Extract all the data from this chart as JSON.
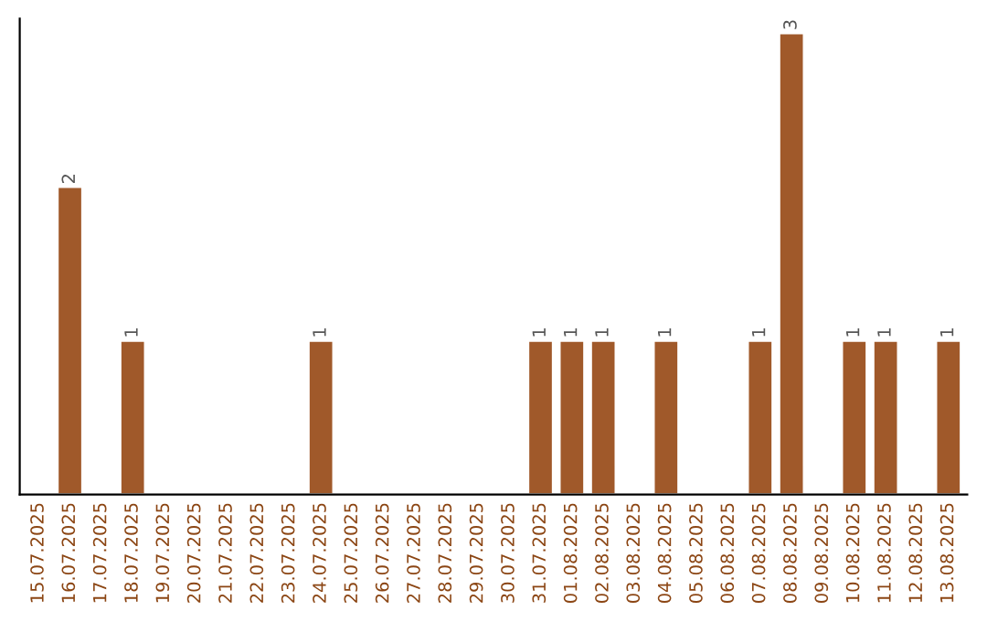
{
  "chart_data": {
    "type": "bar",
    "categories": [
      "15.07.2025",
      "16.07.2025",
      "17.07.2025",
      "18.07.2025",
      "19.07.2025",
      "20.07.2025",
      "21.07.2025",
      "22.07.2025",
      "23.07.2025",
      "24.07.2025",
      "25.07.2025",
      "26.07.2025",
      "27.07.2025",
      "28.07.2025",
      "29.07.2025",
      "30.07.2025",
      "31.07.2025",
      "01.08.2025",
      "02.08.2025",
      "03.08.2025",
      "04.08.2025",
      "05.08.2025",
      "06.08.2025",
      "07.08.2025",
      "08.08.2025",
      "09.08.2025",
      "10.08.2025",
      "11.08.2025",
      "12.08.2025",
      "13.08.2025"
    ],
    "values": [
      null,
      2,
      null,
      1,
      null,
      null,
      null,
      null,
      null,
      1,
      null,
      null,
      null,
      null,
      null,
      null,
      1,
      1,
      1,
      null,
      1,
      null,
      null,
      1,
      3,
      null,
      1,
      1,
      null,
      1
    ],
    "data_labels": true,
    "color": "#a0592a",
    "grid": false,
    "legend": false
  }
}
